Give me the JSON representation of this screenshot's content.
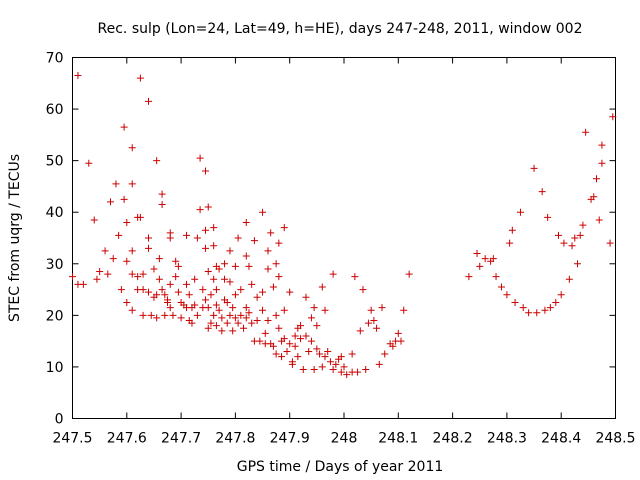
{
  "chart_data": {
    "type": "scatter",
    "title": "Rec. sulp (Lon=24, Lat=49, h=HE), days 247-248, 2011, window 002",
    "xlabel": "GPS time / Days of year 2011",
    "ylabel": "STEC from uqrg / TECUs",
    "xlim": [
      247.5,
      248.5
    ],
    "ylim": [
      0,
      70
    ],
    "xticks": [
      "247.5",
      "247.6",
      "247.7",
      "247.8",
      "247.9",
      "248",
      "248.1",
      "248.2",
      "248.3",
      "248.4",
      "248.5"
    ],
    "yticks": [
      "0",
      "10",
      "20",
      "30",
      "40",
      "50",
      "60",
      "70"
    ],
    "grid": false,
    "marker": "plus",
    "color": "#cc0000",
    "series": [
      {
        "name": "",
        "points": [
          [
            247.5,
            27.5
          ],
          [
            247.51,
            66.5
          ],
          [
            247.51,
            26
          ],
          [
            247.52,
            26
          ],
          [
            247.53,
            49.5
          ],
          [
            247.54,
            38.5
          ],
          [
            247.545,
            27
          ],
          [
            247.55,
            28.5
          ],
          [
            247.56,
            32.5
          ],
          [
            247.565,
            28
          ],
          [
            247.57,
            42
          ],
          [
            247.575,
            31
          ],
          [
            247.58,
            45.5
          ],
          [
            247.585,
            35.5
          ],
          [
            247.59,
            25
          ],
          [
            247.595,
            56.5
          ],
          [
            247.595,
            42.5
          ],
          [
            247.6,
            38
          ],
          [
            247.6,
            30.5
          ],
          [
            247.6,
            22.5
          ],
          [
            247.61,
            52.5
          ],
          [
            247.61,
            45.5
          ],
          [
            247.61,
            32.5
          ],
          [
            247.61,
            28
          ],
          [
            247.61,
            21
          ],
          [
            247.62,
            39
          ],
          [
            247.62,
            27.5
          ],
          [
            247.62,
            25
          ],
          [
            247.625,
            66
          ],
          [
            247.625,
            39
          ],
          [
            247.63,
            28
          ],
          [
            247.63,
            25
          ],
          [
            247.63,
            20
          ],
          [
            247.64,
            61.5
          ],
          [
            247.64,
            35
          ],
          [
            247.64,
            33
          ],
          [
            247.64,
            24.5
          ],
          [
            247.645,
            20
          ],
          [
            247.65,
            29
          ],
          [
            247.65,
            23.5
          ],
          [
            247.655,
            50
          ],
          [
            247.655,
            24
          ],
          [
            247.655,
            19.5
          ],
          [
            247.66,
            31
          ],
          [
            247.66,
            27
          ],
          [
            247.665,
            43.5
          ],
          [
            247.665,
            41.5
          ],
          [
            247.665,
            25
          ],
          [
            247.67,
            24
          ],
          [
            247.67,
            20
          ],
          [
            247.675,
            23
          ],
          [
            247.675,
            22.5
          ],
          [
            247.68,
            36
          ],
          [
            247.68,
            35
          ],
          [
            247.68,
            26
          ],
          [
            247.68,
            21.5
          ],
          [
            247.685,
            20
          ],
          [
            247.69,
            30.5
          ],
          [
            247.69,
            27.5
          ],
          [
            247.695,
            29.5
          ],
          [
            247.695,
            24.5
          ],
          [
            247.7,
            22.5
          ],
          [
            247.7,
            19.5
          ],
          [
            247.705,
            22
          ],
          [
            247.71,
            35.5
          ],
          [
            247.71,
            26
          ],
          [
            247.71,
            21.5
          ],
          [
            247.715,
            24
          ],
          [
            247.715,
            19
          ],
          [
            247.72,
            21.5
          ],
          [
            247.72,
            18.5
          ],
          [
            247.725,
            27
          ],
          [
            247.725,
            22
          ],
          [
            247.73,
            35
          ],
          [
            247.73,
            20
          ],
          [
            247.735,
            50.5
          ],
          [
            247.735,
            40.5
          ],
          [
            247.74,
            25
          ],
          [
            247.74,
            21.5
          ],
          [
            247.745,
            48
          ],
          [
            247.745,
            36.5
          ],
          [
            247.745,
            33
          ],
          [
            247.745,
            23
          ],
          [
            247.75,
            41
          ],
          [
            247.75,
            28.5
          ],
          [
            247.75,
            21.5
          ],
          [
            247.75,
            17.5
          ],
          [
            247.755,
            24
          ],
          [
            247.755,
            18.5
          ],
          [
            247.76,
            37
          ],
          [
            247.76,
            33.5
          ],
          [
            247.76,
            27
          ],
          [
            247.76,
            20
          ],
          [
            247.765,
            29.5
          ],
          [
            247.765,
            25
          ],
          [
            247.765,
            22
          ],
          [
            247.765,
            18
          ],
          [
            247.77,
            29
          ],
          [
            247.77,
            21
          ],
          [
            247.775,
            19.5
          ],
          [
            247.775,
            17
          ],
          [
            247.78,
            30
          ],
          [
            247.78,
            27
          ],
          [
            247.78,
            23
          ],
          [
            247.785,
            22.5
          ],
          [
            247.785,
            18.5
          ],
          [
            247.79,
            32.5
          ],
          [
            247.79,
            26.5
          ],
          [
            247.79,
            20
          ],
          [
            247.795,
            21.5
          ],
          [
            247.795,
            17
          ],
          [
            247.8,
            29.5
          ],
          [
            247.8,
            24
          ],
          [
            247.8,
            19.5
          ],
          [
            247.805,
            35
          ],
          [
            247.805,
            18.5
          ],
          [
            247.81,
            25
          ],
          [
            247.81,
            20
          ],
          [
            247.815,
            17.5
          ],
          [
            247.82,
            38
          ],
          [
            247.82,
            31.5
          ],
          [
            247.82,
            21.5
          ],
          [
            247.82,
            19.5
          ],
          [
            247.825,
            29.5
          ],
          [
            247.825,
            20.5
          ],
          [
            247.83,
            26
          ],
          [
            247.83,
            18.5
          ],
          [
            247.835,
            34.5
          ],
          [
            247.835,
            15
          ],
          [
            247.84,
            23.5
          ],
          [
            247.84,
            19
          ],
          [
            247.845,
            15
          ],
          [
            247.85,
            40
          ],
          [
            247.85,
            24.5
          ],
          [
            247.85,
            21
          ],
          [
            247.855,
            16.5
          ],
          [
            247.855,
            14.5
          ],
          [
            247.86,
            32.5
          ],
          [
            247.86,
            29
          ],
          [
            247.86,
            19
          ],
          [
            247.865,
            36
          ],
          [
            247.865,
            14.5
          ],
          [
            247.87,
            25.5
          ],
          [
            247.87,
            14
          ],
          [
            247.875,
            30
          ],
          [
            247.875,
            20
          ],
          [
            247.875,
            12.5
          ],
          [
            247.88,
            34
          ],
          [
            247.88,
            27.5
          ],
          [
            247.88,
            17.5
          ],
          [
            247.885,
            15
          ],
          [
            247.885,
            12
          ],
          [
            247.89,
            37
          ],
          [
            247.89,
            21
          ],
          [
            247.89,
            15.5
          ],
          [
            247.895,
            13
          ],
          [
            247.9,
            24.5
          ],
          [
            247.9,
            14.5
          ],
          [
            247.905,
            11
          ],
          [
            247.905,
            10.5
          ],
          [
            247.91,
            16
          ],
          [
            247.91,
            14
          ],
          [
            247.915,
            17.5
          ],
          [
            247.915,
            12
          ],
          [
            247.92,
            18
          ],
          [
            247.92,
            15.5
          ],
          [
            247.925,
            9.5
          ],
          [
            247.93,
            23.5
          ],
          [
            247.93,
            16
          ],
          [
            247.935,
            13
          ],
          [
            247.94,
            19.5
          ],
          [
            247.94,
            15
          ],
          [
            247.945,
            21.5
          ],
          [
            247.945,
            9.5
          ],
          [
            247.95,
            18
          ],
          [
            247.95,
            13.5
          ],
          [
            247.955,
            12.5
          ],
          [
            247.96,
            25.5
          ],
          [
            247.96,
            10
          ],
          [
            247.965,
            21
          ],
          [
            247.965,
            12
          ],
          [
            247.97,
            13
          ],
          [
            247.975,
            11
          ],
          [
            247.98,
            28
          ],
          [
            247.98,
            9.5
          ],
          [
            247.985,
            10.5
          ],
          [
            247.99,
            11.5
          ],
          [
            247.995,
            12
          ],
          [
            247.995,
            9
          ],
          [
            248.0,
            10
          ],
          [
            248.005,
            8.5
          ],
          [
            248.015,
            12.5
          ],
          [
            248.015,
            9
          ],
          [
            248.02,
            27.5
          ],
          [
            248.025,
            9
          ],
          [
            248.03,
            17
          ],
          [
            248.035,
            25
          ],
          [
            248.04,
            9.5
          ],
          [
            248.045,
            18.5
          ],
          [
            248.05,
            21
          ],
          [
            248.055,
            19
          ],
          [
            248.06,
            17.5
          ],
          [
            248.065,
            10.5
          ],
          [
            248.07,
            21.5
          ],
          [
            248.075,
            12.5
          ],
          [
            248.085,
            14.5
          ],
          [
            248.09,
            14
          ],
          [
            248.095,
            15
          ],
          [
            248.1,
            16.5
          ],
          [
            248.105,
            15
          ],
          [
            248.11,
            21
          ],
          [
            248.12,
            28
          ],
          [
            248.23,
            27.5
          ],
          [
            248.245,
            32
          ],
          [
            248.25,
            29.5
          ],
          [
            248.26,
            31
          ],
          [
            248.27,
            30.5
          ],
          [
            248.275,
            31
          ],
          [
            248.28,
            27.5
          ],
          [
            248.29,
            25.5
          ],
          [
            248.3,
            24
          ],
          [
            248.305,
            34
          ],
          [
            248.31,
            36.5
          ],
          [
            248.315,
            22.5
          ],
          [
            248.325,
            40
          ],
          [
            248.33,
            21.5
          ],
          [
            248.34,
            20.5
          ],
          [
            248.35,
            48.5
          ],
          [
            248.355,
            20.5
          ],
          [
            248.365,
            44
          ],
          [
            248.37,
            21
          ],
          [
            248.375,
            39
          ],
          [
            248.38,
            21.5
          ],
          [
            248.39,
            22.5
          ],
          [
            248.395,
            35.5
          ],
          [
            248.4,
            24
          ],
          [
            248.405,
            34
          ],
          [
            248.415,
            27
          ],
          [
            248.42,
            33.5
          ],
          [
            248.425,
            35
          ],
          [
            248.43,
            30
          ],
          [
            248.435,
            35.5
          ],
          [
            248.44,
            37.5
          ],
          [
            248.445,
            55.5
          ],
          [
            248.455,
            42.5
          ],
          [
            248.46,
            43
          ],
          [
            248.465,
            46.5
          ],
          [
            248.47,
            38.5
          ],
          [
            248.475,
            49.5
          ],
          [
            248.475,
            53
          ],
          [
            248.49,
            34
          ],
          [
            248.495,
            58.5
          ]
        ]
      }
    ]
  }
}
